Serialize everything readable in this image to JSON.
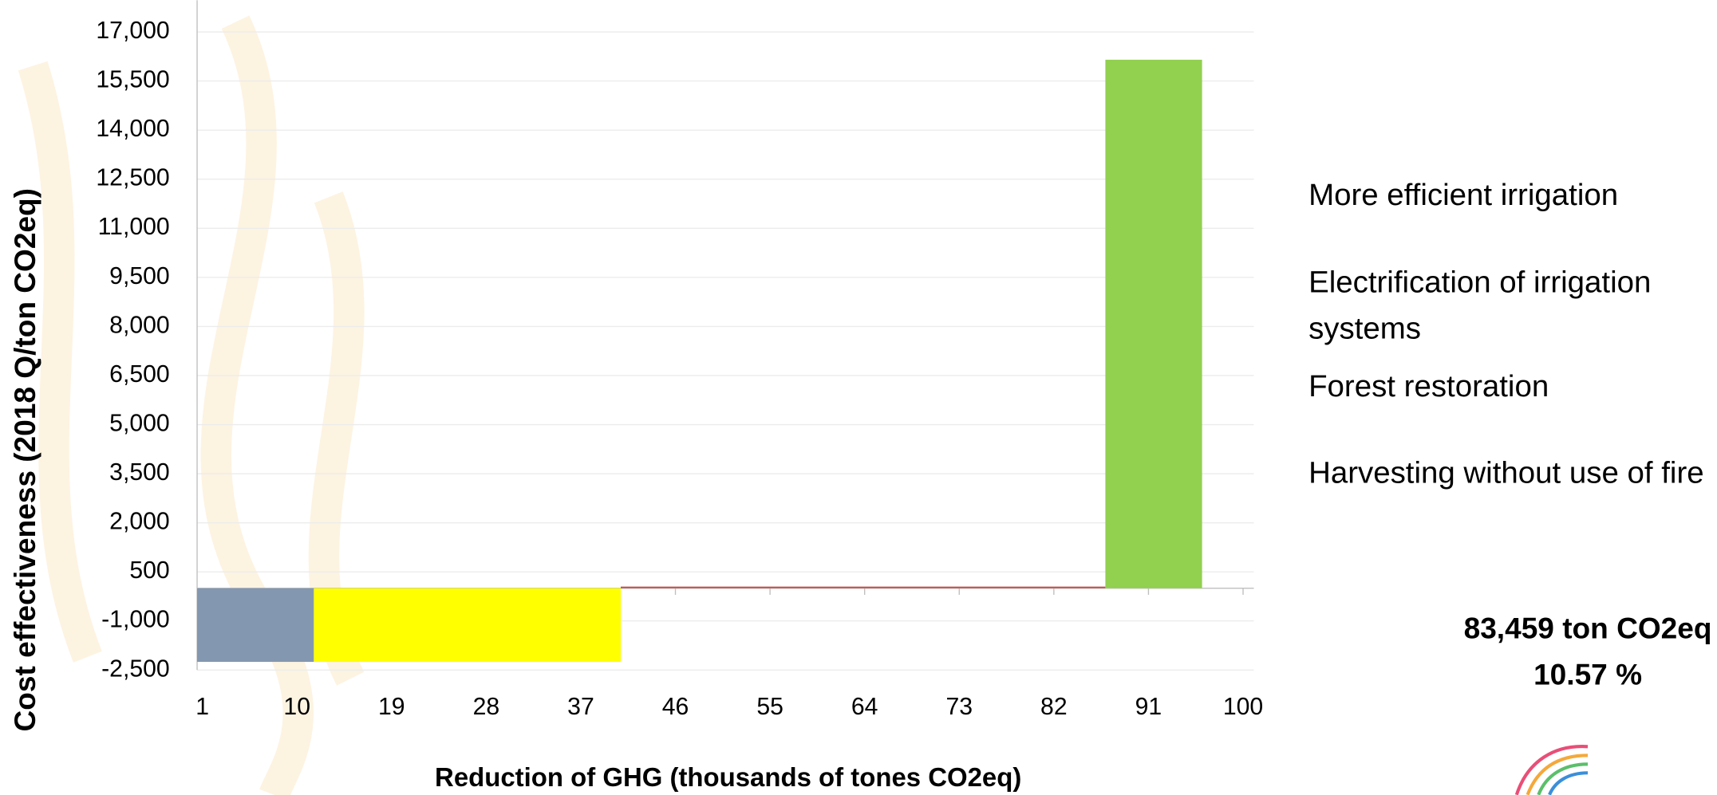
{
  "chart_data": {
    "type": "step-bar",
    "ylabel": "Cost effectiveness  (2018 Q/ton CO2eq)",
    "xlabel": "Reduction of GHG (thousands of tones CO2eq)",
    "series": [
      {
        "name": "More efficient irrigation",
        "color": "#92d050",
        "x_start": 86.9,
        "x_end": 96.1,
        "value": 16150
      },
      {
        "name": "Electrification of irrigation systems",
        "color": "#c0504d",
        "x_start": 40.8,
        "x_end": 86.9,
        "value": 50
      },
      {
        "name": "Forest restoration",
        "color": "#ffff00",
        "x_start": 11.6,
        "x_end": 40.8,
        "value": -2250
      },
      {
        "name": "Harvesting without use of fire",
        "color": "#8497b0",
        "x_start": 0.5,
        "x_end": 11.6,
        "value": -2250
      }
    ],
    "xlim": [
      0.5,
      100.5
    ],
    "xticks": [
      1,
      10,
      19,
      28,
      37,
      46,
      55,
      64,
      73,
      82,
      91,
      100
    ],
    "ylim": [
      -3000,
      17500
    ],
    "yticks": [
      {
        "value": -2500,
        "label": "-2,500"
      },
      {
        "value": -1000,
        "label": "-1,000"
      },
      500,
      {
        "value": 2000,
        "label": "2,000"
      },
      {
        "value": 3500,
        "label": "3,500"
      },
      {
        "value": 5000,
        "label": "5,000"
      },
      {
        "value": 6500,
        "label": "6,500"
      },
      {
        "value": 8000,
        "label": "8,000"
      },
      {
        "value": 9500,
        "label": "9,500"
      },
      {
        "value": 11000,
        "label": "11,000"
      },
      {
        "value": 12500,
        "label": "12,500"
      },
      {
        "value": 14000,
        "label": "14,000"
      },
      {
        "value": 15500,
        "label": "15,500"
      },
      {
        "value": 17000,
        "label": "17,000"
      }
    ],
    "grid": true,
    "annotations": [
      "83,459 ton CO2eq",
      "10.57 %"
    ]
  }
}
